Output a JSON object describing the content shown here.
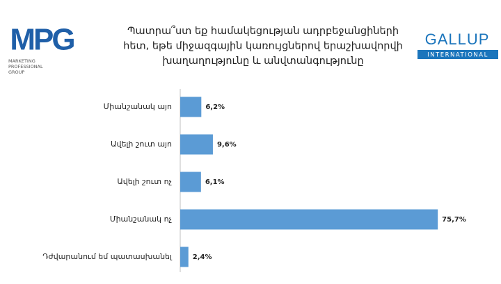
{
  "chart_data": {
    "type": "hbar",
    "title": [
      "Պատրա՞ստ եք համակեցության ադրբեջանցիների",
      "հետ, եթե միջազգային կառույցներով երաշխավորվի",
      "խաղաղությունը և անվտանգությունը"
    ],
    "categories": [
      "Միանշանակ այո",
      "Ավելի շուտ այո",
      "Ավելի շուտ ոչ",
      "Միանշանակ ոչ",
      "Դժվարանում եմ պատասխանել"
    ],
    "values": [
      6.2,
      9.6,
      6.1,
      75.7,
      2.4
    ],
    "value_labels": [
      "6,2%",
      "9,6%",
      "6,1%",
      "75,7%",
      "2,4%"
    ],
    "color": "#5b9bd5"
  },
  "logos": {
    "mpg": "MPG",
    "mpg_sub": [
      "MARKETING",
      "PROFESSIONAL",
      "GROUP"
    ],
    "gallup": "GALLUP",
    "gallup_sub": "INTERNATIONAL"
  }
}
